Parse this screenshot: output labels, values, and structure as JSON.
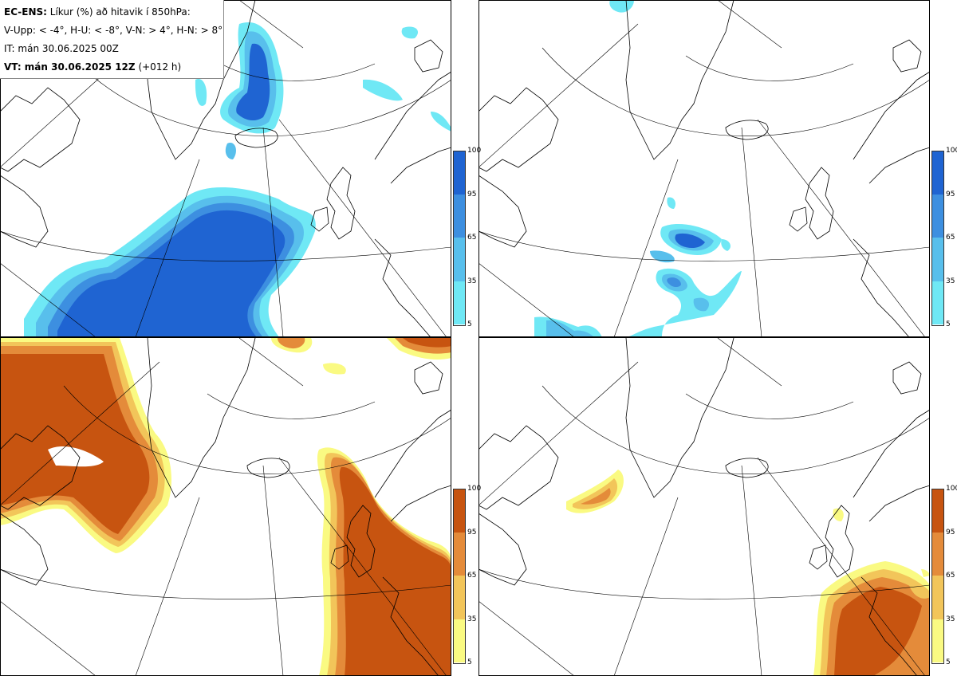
{
  "legend": {
    "model": "EC-ENS:",
    "description": "Líkur (%) að hitavik í 850hPa:",
    "thresholds": "V-Upp: < -4°, H-U: < -8°, V-N: > 4°, H-N: > 8°",
    "init_time": "IT: mán 30.06.2025 00Z",
    "valid_time_label": "VT: mán 30.06.2025 12Z",
    "lead_time": "(+012 h)"
  },
  "colorbars": {
    "cold": {
      "ticks": [
        "100",
        "95",
        "65",
        "35",
        "5"
      ],
      "colors": [
        "#1f64d2",
        "#3d8fe0",
        "#58bfec",
        "#6fe8f5"
      ]
    },
    "warm": {
      "ticks": [
        "100",
        "95",
        "65",
        "35",
        "5"
      ],
      "colors": [
        "#c75410",
        "#e48b3a",
        "#f2c55a",
        "#fafa82"
      ]
    }
  },
  "panels": [
    {
      "id": "top-left",
      "name": "V-Upp",
      "scheme": "cold"
    },
    {
      "id": "top-right",
      "name": "H-U",
      "scheme": "cold"
    },
    {
      "id": "bottom-left",
      "name": "V-N",
      "scheme": "warm"
    },
    {
      "id": "bottom-right",
      "name": "H-N",
      "scheme": "warm"
    }
  ]
}
